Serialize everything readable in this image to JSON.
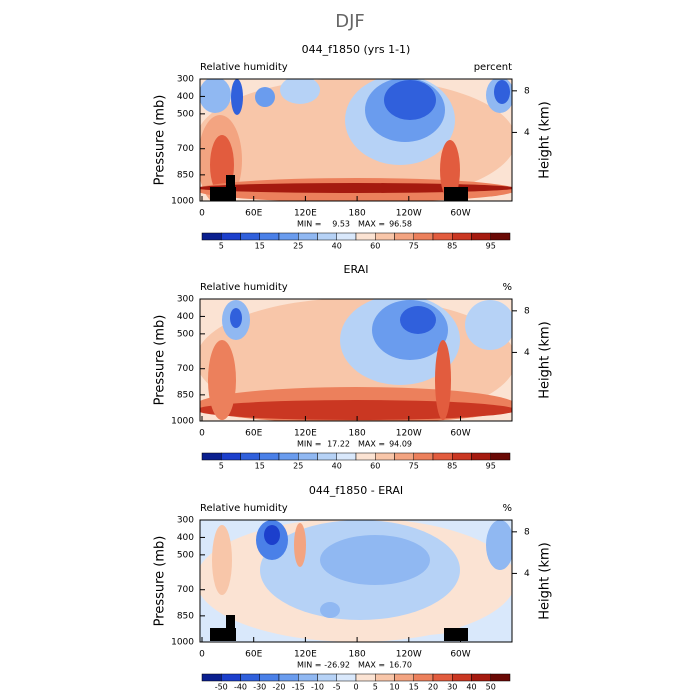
{
  "title": "DJF",
  "axes": {
    "y_label": "Pressure (mb)",
    "y_ticks": [
      300,
      400,
      500,
      700,
      850,
      1000
    ],
    "y_range": [
      300,
      1000
    ],
    "y2_label": "Height (km)",
    "y2_ticks": [
      8,
      4
    ],
    "x_ticks": [
      "0",
      "60E",
      "120E",
      "180",
      "120W",
      "60W"
    ]
  },
  "panels": [
    {
      "title": "044_f1850 (yrs 1-1)",
      "left_label": "Relative humidity",
      "right_label": "percent",
      "min_label": "MIN =",
      "min": "9.53",
      "max_label": "MAX =",
      "max": "96.58",
      "colorbar_labels": [
        "5",
        "15",
        "25",
        "40",
        "60",
        "75",
        "85",
        "95"
      ],
      "colorbar_colors": [
        "#0a1f8f",
        "#1c3fcc",
        "#3060dc",
        "#4a80e8",
        "#6a9cee",
        "#90b8f2",
        "#b6d2f6",
        "#d9e8fb",
        "#fbe3d3",
        "#f8c6a9",
        "#f3a481",
        "#ec805c",
        "#e25c3e",
        "#ca3722",
        "#a51a0f",
        "#6a0905"
      ]
    },
    {
      "title": "ERAI",
      "left_label": "Relative humidity",
      "right_label": "%",
      "min_label": "MIN =",
      "min": "17.22",
      "max_label": "MAX =",
      "max": "94.09",
      "colorbar_labels": [
        "5",
        "15",
        "25",
        "40",
        "60",
        "75",
        "85",
        "95"
      ],
      "colorbar_colors": [
        "#0a1f8f",
        "#1c3fcc",
        "#3060dc",
        "#4a80e8",
        "#6a9cee",
        "#90b8f2",
        "#b6d2f6",
        "#d9e8fb",
        "#fbe3d3",
        "#f8c6a9",
        "#f3a481",
        "#ec805c",
        "#e25c3e",
        "#ca3722",
        "#a51a0f",
        "#6a0905"
      ]
    },
    {
      "title": "044_f1850 - ERAI",
      "left_label": "Relative humidity",
      "right_label": "%",
      "min_label": "MIN =",
      "min": "-26.92",
      "max_label": "MAX =",
      "max": "16.70",
      "colorbar_labels": [
        "-50",
        "-40",
        "-30",
        "-20",
        "-15",
        "-10",
        "-5",
        "0",
        "5",
        "10",
        "15",
        "20",
        "30",
        "40",
        "50"
      ],
      "colorbar_colors": [
        "#0a1f8f",
        "#1c3fcc",
        "#3060dc",
        "#4a80e8",
        "#6a9cee",
        "#90b8f2",
        "#b6d2f6",
        "#d9e8fb",
        "#fbe3d3",
        "#f8c6a9",
        "#f3a481",
        "#ec805c",
        "#e25c3e",
        "#ca3722",
        "#a51a0f",
        "#6a0905"
      ]
    }
  ]
}
